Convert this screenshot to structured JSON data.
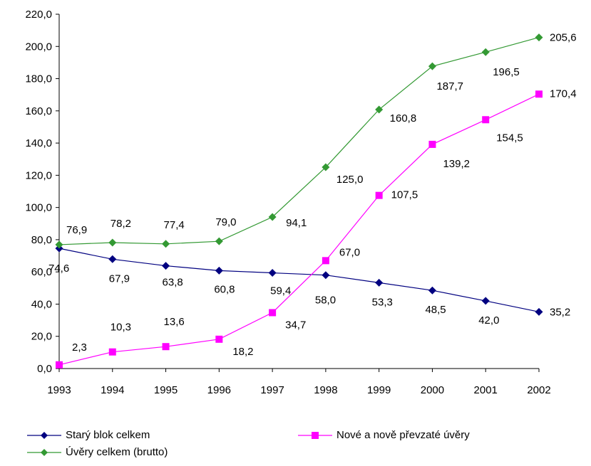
{
  "chart_data": {
    "type": "line",
    "title": "",
    "xlabel": "",
    "ylabel": "",
    "ylim": [
      0,
      220
    ],
    "ytick_step": 20,
    "ytick_labels": [
      "0,0",
      "20,0",
      "40,0",
      "60,0",
      "80,0",
      "100,0",
      "120,0",
      "140,0",
      "160,0",
      "180,0",
      "200,0",
      "220,0"
    ],
    "categories": [
      "1993",
      "1994",
      "1995",
      "1996",
      "1997",
      "1998",
      "1999",
      "2000",
      "2001",
      "2002"
    ],
    "grid": false,
    "legend_placement": "bottom",
    "series": [
      {
        "name": "Starý blok celkem",
        "color": "#000080",
        "marker": "diamond",
        "values": [
          74.6,
          67.9,
          63.8,
          60.8,
          59.4,
          58.0,
          53.3,
          48.5,
          42.0,
          35.2
        ],
        "labels": [
          "74,6",
          "67,9",
          "63,8",
          "60,8",
          "59,4",
          "58,0",
          "53,3",
          "48,5",
          "42,0",
          "35,2"
        ]
      },
      {
        "name": "Nové a nově převzaté úvěry",
        "color": "#ff00ff",
        "marker": "square",
        "values": [
          2.3,
          10.3,
          13.6,
          18.2,
          34.7,
          67.0,
          107.5,
          139.2,
          154.5,
          170.4
        ],
        "labels": [
          "2,3",
          "10,3",
          "13,6",
          "18,2",
          "34,7",
          "67,0",
          "107,5",
          "139,2",
          "154,5",
          "170,4"
        ]
      },
      {
        "name": "Úvěry celkem (brutto)",
        "color": "#339933",
        "marker": "diamond",
        "values": [
          76.9,
          78.2,
          77.4,
          79.0,
          94.1,
          125.0,
          160.8,
          187.7,
          196.5,
          205.6
        ],
        "labels": [
          "76,9",
          "78,2",
          "77,4",
          "79,0",
          "94,1",
          "125,0",
          "160,8",
          "187,7",
          "196,5",
          "205,6"
        ]
      }
    ]
  }
}
